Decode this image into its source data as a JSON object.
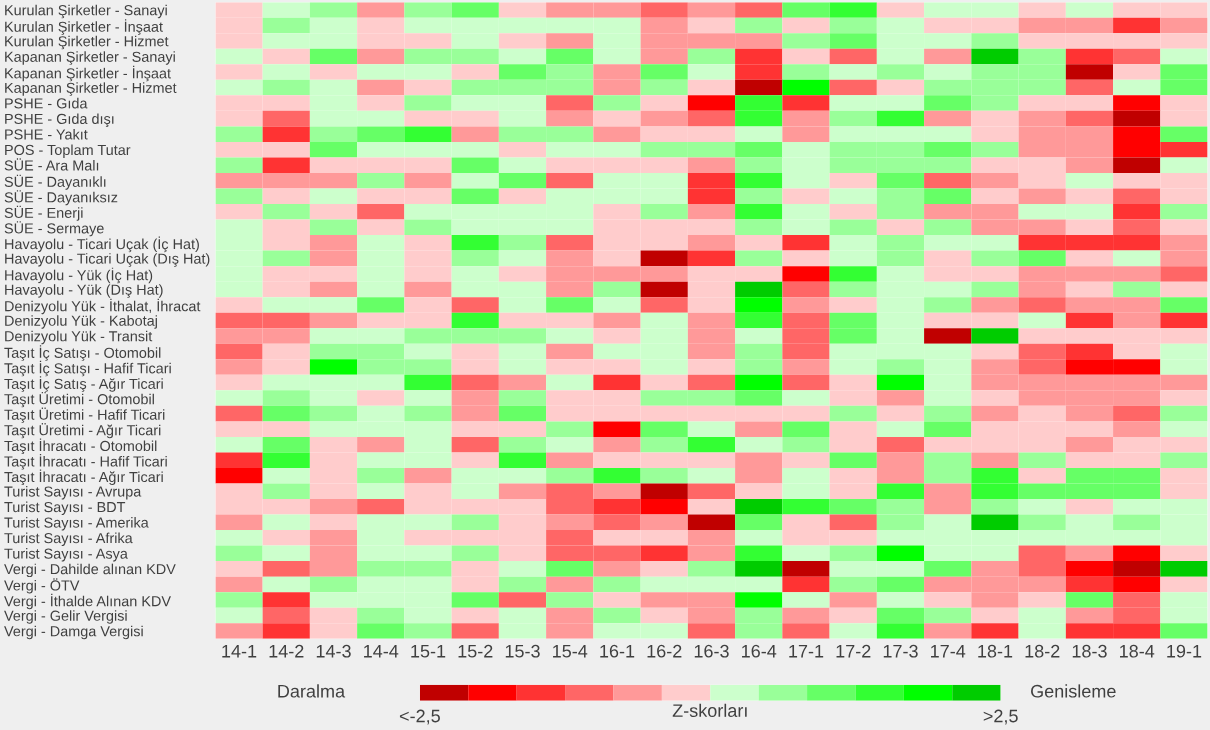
{
  "chart_data": {
    "type": "heatmap",
    "categories": [
      "14-1",
      "14-2",
      "14-3",
      "14-4",
      "15-1",
      "15-2",
      "15-3",
      "15-4",
      "16-1",
      "16-2",
      "16-3",
      "16-4",
      "17-1",
      "17-2",
      "17-3",
      "17-4",
      "18-1",
      "18-2",
      "18-3",
      "18-4",
      "19-1"
    ],
    "y_categories": [
      "Kurulan Şirketler - Sanayi",
      "Kurulan Şirketler - İnşaat",
      "Kurulan Şirketler - Hizmet",
      "Kapanan Şirketler - Sanayi",
      "Kapanan Şirketler - İnşaat",
      "Kapanan Şirketler - Hizmet",
      "PSHE - Gıda",
      "PSHE - Gıda dışı",
      "PSHE - Yakıt",
      "POS - Toplam Tutar",
      "SÜE - Ara Malı",
      "SÜE - Dayanıklı",
      "SÜE - Dayanıksız",
      "SÜE - Enerji",
      "SÜE - Sermaye",
      "Havayolu - Ticari Uçak (İç Hat)",
      "Havayolu - Ticari Uçak (Dış Hat)",
      "Havayolu - Yük (İç Hat)",
      "Havayolu - Yük (Dış Hat)",
      "Denizyolu Yük - İthalat, İhracat",
      "Denizyolu Yük - Kabotaj",
      "Denizyolu Yük - Transit",
      "Taşıt İç Satışı - Otomobil",
      "Taşıt İç Satışı - Hafif Ticari",
      "Taşıt İç Satış - Ağır Ticari",
      "Taşıt Üretimi - Otomobil",
      "Taşıt Üretimi - Hafif Ticari",
      "Taşıt Üretimi - Ağır Ticari",
      "Taşıt İhracatı - Otomobil",
      "Taşıt İhracatı - Hafif Ticari",
      "Taşıt İhracatı - Ağır Ticari",
      "Turist Sayısı - Avrupa",
      "Turist Sayısı - BDT",
      "Turist Sayısı - Amerika",
      "Turist Sayısı - Afrika",
      "Turist Sayısı - Asya",
      "Vergi - Dahilde alınan KDV",
      "Vergi - ÖTV",
      "Vergi - İthalde Alınan KDV",
      "Vergi - Gelir Vergisi",
      "Vergi - Damga Vergisi"
    ],
    "cells": [
      [
        -0.25,
        0.25,
        0.75,
        -0.75,
        0.75,
        1.25,
        -0.25,
        -0.75,
        -0.75,
        -1.25,
        -0.75,
        -1.25,
        1.25,
        1.75,
        -0.25,
        0.25,
        0.25,
        -0.25,
        0.25,
        -0.25,
        -0.25
      ],
      [
        -0.25,
        0.75,
        0.25,
        -0.25,
        0.25,
        0.25,
        0.25,
        0.25,
        0.25,
        -0.75,
        -0.25,
        0.75,
        -0.25,
        0.75,
        0.25,
        -0.25,
        -0.25,
        -0.75,
        -0.75,
        -1.75,
        -0.75
      ],
      [
        -0.25,
        0.25,
        0.25,
        -0.25,
        -0.25,
        0.25,
        -0.25,
        -0.75,
        0.25,
        -0.75,
        -0.75,
        -0.75,
        0.75,
        1.25,
        0.25,
        0.25,
        0.75,
        -0.25,
        -0.25,
        -0.25,
        -0.25
      ],
      [
        0.25,
        -0.25,
        1.25,
        -0.75,
        0.75,
        0.75,
        0.25,
        1.25,
        0.25,
        -0.75,
        0.75,
        -1.75,
        -0.25,
        -1.25,
        0.25,
        -0.75,
        2.75,
        0.75,
        -1.75,
        -1.25,
        0.25
      ],
      [
        -0.25,
        0.25,
        -0.25,
        0.25,
        0.25,
        -0.25,
        1.25,
        0.75,
        -0.75,
        1.25,
        0.25,
        -1.75,
        0.75,
        0.25,
        0.75,
        0.25,
        0.75,
        0.75,
        -2.75,
        -0.25,
        1.25
      ],
      [
        0.25,
        0.75,
        0.25,
        -0.75,
        -0.25,
        0.75,
        0.75,
        0.75,
        -0.75,
        0.75,
        -0.25,
        -2.75,
        2.25,
        -1.25,
        -0.25,
        0.75,
        0.75,
        0.75,
        -1.25,
        0.25,
        1.25
      ],
      [
        -0.25,
        -0.25,
        0.25,
        -0.25,
        0.75,
        0.25,
        0.25,
        -1.25,
        0.75,
        -0.25,
        -2.25,
        1.75,
        -1.75,
        0.25,
        0.25,
        1.25,
        0.75,
        -0.25,
        -0.25,
        -2.25,
        -0.25
      ],
      [
        -0.25,
        -1.25,
        0.25,
        0.25,
        -0.25,
        -0.25,
        0.25,
        -0.75,
        -0.25,
        -0.75,
        -1.25,
        1.75,
        -0.75,
        0.75,
        1.75,
        -0.75,
        -0.25,
        -0.75,
        -1.25,
        -2.75,
        -0.25
      ],
      [
        0.75,
        -1.75,
        0.75,
        1.25,
        1.75,
        -0.75,
        0.75,
        0.75,
        -0.75,
        -0.25,
        -0.25,
        0.25,
        -0.75,
        0.25,
        0.25,
        0.25,
        -0.25,
        -0.75,
        -0.75,
        -2.25,
        1.25
      ],
      [
        -0.25,
        -0.25,
        1.25,
        0.25,
        0.25,
        0.25,
        -0.25,
        0.25,
        0.25,
        0.75,
        0.75,
        1.25,
        0.25,
        0.75,
        0.75,
        1.25,
        0.75,
        -0.75,
        -0.75,
        -2.25,
        -1.75
      ],
      [
        0.75,
        -1.75,
        -0.25,
        -0.25,
        -0.25,
        1.25,
        0.25,
        -0.25,
        -0.25,
        -0.25,
        -0.75,
        0.75,
        0.25,
        0.75,
        0.75,
        0.75,
        -0.25,
        -0.25,
        -0.75,
        -2.75,
        0.25
      ],
      [
        -0.75,
        -0.75,
        -0.75,
        0.75,
        -0.75,
        0.25,
        1.25,
        -1.25,
        0.25,
        0.25,
        -1.75,
        1.75,
        0.25,
        -0.25,
        1.25,
        -1.25,
        -0.75,
        -0.25,
        0.25,
        -0.25,
        -0.25
      ],
      [
        0.75,
        -0.25,
        0.25,
        -0.25,
        -0.25,
        1.25,
        -0.25,
        0.25,
        0.25,
        0.25,
        -1.75,
        0.75,
        -0.25,
        0.25,
        0.75,
        1.25,
        -0.25,
        -0.75,
        -0.25,
        -1.25,
        -0.25
      ],
      [
        -0.25,
        0.75,
        -0.25,
        -1.25,
        0.25,
        0.25,
        0.25,
        0.25,
        -0.25,
        0.75,
        -0.75,
        1.75,
        0.25,
        -0.25,
        0.75,
        -0.75,
        -0.75,
        0.25,
        0.25,
        -1.75,
        0.75
      ],
      [
        0.25,
        -0.25,
        0.75,
        -0.25,
        0.75,
        0.25,
        0.25,
        0.25,
        -0.25,
        -0.25,
        -0.25,
        0.75,
        0.25,
        0.75,
        -0.25,
        0.75,
        -0.75,
        -0.75,
        -0.25,
        -1.25,
        -0.25
      ],
      [
        0.25,
        -0.25,
        -0.75,
        0.25,
        -0.25,
        1.75,
        0.75,
        -1.25,
        -0.25,
        -0.25,
        -0.75,
        -0.25,
        -1.75,
        0.25,
        0.75,
        0.25,
        0.25,
        -1.75,
        -1.75,
        -1.75,
        -0.75
      ],
      [
        0.25,
        0.75,
        -0.75,
        0.25,
        -0.25,
        0.75,
        0.25,
        -0.75,
        -0.25,
        -2.75,
        -1.75,
        0.75,
        -0.25,
        0.25,
        0.75,
        -0.25,
        0.75,
        1.25,
        -0.25,
        0.25,
        -0.75
      ],
      [
        0.25,
        -0.25,
        -0.25,
        0.25,
        -0.25,
        0.25,
        -0.25,
        -0.75,
        -0.75,
        -0.75,
        -0.25,
        -0.25,
        -2.25,
        1.75,
        0.25,
        -0.25,
        -0.25,
        -0.75,
        -0.75,
        -0.75,
        -1.25
      ],
      [
        0.25,
        -0.25,
        -0.75,
        0.25,
        -0.75,
        0.25,
        0.25,
        -0.75,
        0.75,
        -2.75,
        -0.25,
        2.75,
        -1.25,
        0.75,
        0.25,
        0.25,
        0.75,
        -0.75,
        -0.25,
        0.75,
        -0.25
      ],
      [
        -0.25,
        0.25,
        0.25,
        1.25,
        -0.25,
        -1.25,
        0.25,
        1.25,
        0.25,
        -1.25,
        -0.25,
        2.25,
        -0.75,
        -0.25,
        0.25,
        0.75,
        -0.75,
        -1.25,
        -0.75,
        -0.75,
        1.25
      ],
      [
        -1.25,
        -1.25,
        -0.75,
        -0.25,
        -0.25,
        1.75,
        -0.25,
        -0.25,
        -0.75,
        0.25,
        -0.75,
        1.75,
        -1.25,
        1.25,
        0.25,
        -0.25,
        -0.25,
        0.25,
        -1.75,
        -0.75,
        -1.75
      ],
      [
        -0.75,
        -0.75,
        0.25,
        0.25,
        0.75,
        0.75,
        0.75,
        0.25,
        -0.25,
        0.25,
        -0.75,
        0.25,
        -1.25,
        1.25,
        0.25,
        -2.75,
        2.75,
        -0.25,
        -0.25,
        -0.25,
        -0.25
      ],
      [
        -1.25,
        -0.25,
        0.75,
        0.75,
        0.25,
        -0.25,
        0.25,
        -0.75,
        0.25,
        0.25,
        -0.75,
        0.75,
        -1.25,
        0.25,
        0.25,
        0.25,
        -0.25,
        -1.25,
        -1.75,
        -0.25,
        0.25
      ],
      [
        -0.75,
        -0.25,
        2.25,
        0.75,
        0.75,
        -0.25,
        0.25,
        -0.25,
        -0.25,
        0.25,
        -0.25,
        0.75,
        -0.75,
        0.25,
        0.75,
        0.25,
        -0.75,
        -1.25,
        -2.25,
        -2.25,
        0.25
      ],
      [
        -0.25,
        0.25,
        0.25,
        0.25,
        1.75,
        -1.25,
        -0.75,
        0.25,
        -1.75,
        -0.25,
        -1.25,
        2.25,
        -1.25,
        -0.25,
        2.25,
        0.25,
        -0.75,
        -0.75,
        -0.75,
        -0.75,
        -0.75
      ],
      [
        0.25,
        0.75,
        0.25,
        -0.25,
        0.25,
        -0.75,
        0.75,
        -0.25,
        -0.25,
        0.75,
        0.75,
        1.25,
        0.25,
        -0.25,
        -0.75,
        0.25,
        -0.25,
        -0.75,
        -0.75,
        -0.75,
        -0.25
      ],
      [
        -1.25,
        1.25,
        0.75,
        0.25,
        0.75,
        -0.75,
        1.25,
        -0.25,
        -0.25,
        -0.25,
        -0.25,
        -0.25,
        -0.25,
        0.75,
        -0.25,
        0.75,
        -0.75,
        -0.25,
        -0.75,
        -1.25,
        0.75
      ],
      [
        -0.25,
        -0.25,
        0.25,
        0.25,
        0.25,
        -0.25,
        -0.25,
        0.75,
        -2.25,
        1.25,
        0.25,
        -0.75,
        1.25,
        -0.25,
        0.25,
        1.25,
        -0.25,
        -0.25,
        -0.25,
        -0.75,
        0.25
      ],
      [
        0.25,
        1.25,
        -0.25,
        -0.75,
        0.25,
        -1.25,
        0.75,
        0.25,
        -0.75,
        0.75,
        1.75,
        0.25,
        0.75,
        -0.25,
        -1.25,
        -0.25,
        -0.25,
        -0.25,
        -0.75,
        -0.25,
        -0.25
      ],
      [
        -1.75,
        1.75,
        -0.25,
        0.25,
        0.25,
        -0.25,
        1.75,
        -0.75,
        -0.25,
        -0.25,
        -0.25,
        -0.75,
        -0.25,
        1.25,
        -0.75,
        0.75,
        -0.75,
        0.75,
        -0.25,
        -0.25,
        0.75
      ],
      [
        -2.25,
        0.25,
        -0.25,
        0.75,
        -0.75,
        0.25,
        0.25,
        0.75,
        1.75,
        0.75,
        0.25,
        -0.75,
        0.25,
        -0.25,
        -0.75,
        0.75,
        1.75,
        -0.25,
        1.25,
        1.25,
        -0.25
      ],
      [
        -0.25,
        0.75,
        -0.25,
        0.25,
        -0.25,
        0.25,
        -0.75,
        -1.25,
        -0.75,
        -2.75,
        -1.25,
        -0.25,
        0.25,
        -0.25,
        1.75,
        -0.75,
        1.75,
        1.25,
        1.25,
        1.25,
        -0.25
      ],
      [
        -0.25,
        -0.25,
        -0.75,
        -1.25,
        -0.25,
        -0.25,
        -0.25,
        -1.25,
        -1.75,
        -2.25,
        -0.25,
        2.75,
        1.75,
        1.25,
        0.75,
        -0.75,
        0.75,
        0.25,
        -0.25,
        0.25,
        0.25
      ],
      [
        -0.75,
        0.25,
        -0.25,
        0.25,
        0.25,
        0.75,
        -0.25,
        -0.75,
        -1.25,
        -0.75,
        -2.75,
        1.25,
        -0.25,
        -1.25,
        0.75,
        0.25,
        2.75,
        0.75,
        0.25,
        0.75,
        0.25
      ],
      [
        0.25,
        -0.25,
        -0.75,
        0.25,
        -0.25,
        -0.25,
        -0.25,
        -1.25,
        -0.25,
        -0.25,
        -0.75,
        0.25,
        -0.25,
        -0.25,
        0.25,
        0.25,
        0.25,
        0.25,
        0.25,
        0.25,
        0.25
      ],
      [
        0.75,
        0.25,
        -0.75,
        0.25,
        0.25,
        0.75,
        -0.25,
        -1.25,
        -1.25,
        -1.75,
        -0.75,
        1.75,
        0.25,
        0.75,
        2.25,
        0.25,
        0.25,
        -1.25,
        -0.75,
        -2.25,
        -0.25
      ],
      [
        -0.25,
        -1.25,
        -0.75,
        0.75,
        0.75,
        -0.25,
        0.25,
        1.25,
        -0.75,
        -0.25,
        0.75,
        2.75,
        -2.75,
        0.25,
        0.25,
        1.25,
        -0.75,
        -1.25,
        -2.25,
        -2.75,
        2.75
      ],
      [
        -0.75,
        0.25,
        0.75,
        0.25,
        0.25,
        -0.25,
        0.75,
        -0.75,
        0.75,
        0.25,
        0.25,
        0.25,
        -1.75,
        0.75,
        1.25,
        -0.75,
        -0.75,
        -0.75,
        -1.75,
        -2.25,
        -0.25
      ],
      [
        0.75,
        -1.75,
        0.25,
        0.25,
        0.25,
        1.25,
        -1.25,
        0.75,
        -0.25,
        -0.75,
        -0.75,
        2.25,
        0.25,
        -0.75,
        0.25,
        -0.25,
        -0.75,
        -0.25,
        1.25,
        -1.25,
        0.25
      ],
      [
        0.25,
        -1.25,
        -0.25,
        0.75,
        0.25,
        -0.25,
        0.25,
        -0.75,
        0.75,
        -0.25,
        -0.75,
        0.75,
        -0.75,
        -0.25,
        1.25,
        0.75,
        -0.25,
        0.25,
        -0.75,
        -1.25,
        0.25
      ],
      [
        -0.75,
        -1.75,
        -0.25,
        1.25,
        0.75,
        -1.25,
        0.25,
        -0.75,
        0.25,
        0.25,
        -1.25,
        0.75,
        -1.25,
        0.25,
        1.75,
        -0.75,
        -1.75,
        0.25,
        -1.75,
        -1.75,
        1.25
      ]
    ],
    "clim": [
      -3,
      3
    ],
    "cticks": [
      {
        "value": -3,
        "label": "<-2,5"
      },
      {
        "value": 3,
        "label": ">2,5"
      }
    ],
    "clabel": "Z-skorları",
    "annotations": [
      "Daralma",
      "Genisleme"
    ]
  }
}
